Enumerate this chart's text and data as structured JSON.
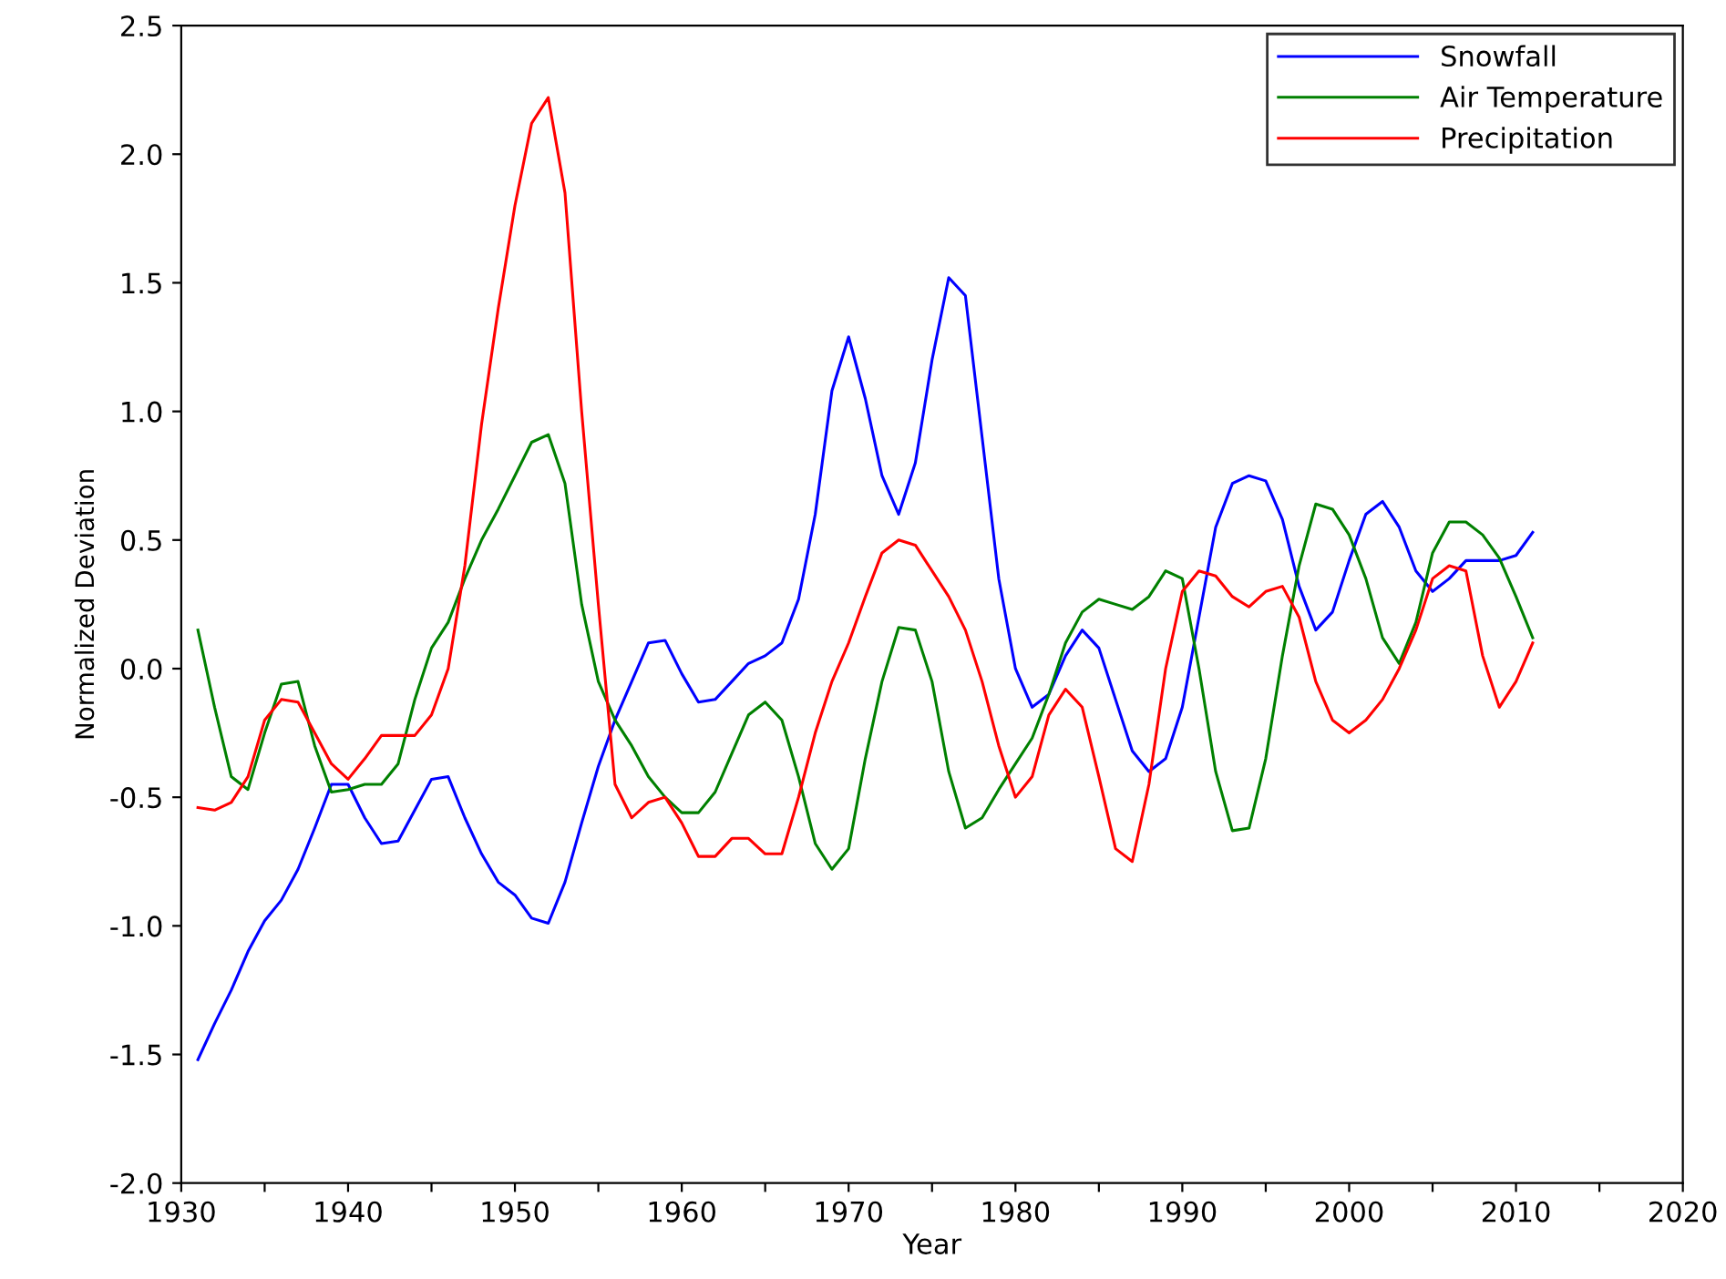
{
  "chart_data": {
    "type": "line",
    "xlabel": "Year",
    "ylabel": "Normalized Deviation",
    "x": [
      1931,
      1932,
      1933,
      1934,
      1935,
      1936,
      1937,
      1938,
      1939,
      1940,
      1941,
      1942,
      1943,
      1944,
      1945,
      1946,
      1947,
      1948,
      1949,
      1950,
      1951,
      1952,
      1953,
      1954,
      1955,
      1956,
      1957,
      1958,
      1959,
      1960,
      1961,
      1962,
      1963,
      1964,
      1965,
      1966,
      1967,
      1968,
      1969,
      1970,
      1971,
      1972,
      1973,
      1974,
      1975,
      1976,
      1977,
      1978,
      1979,
      1980,
      1981,
      1982,
      1983,
      1984,
      1985,
      1986,
      1987,
      1988,
      1989,
      1990,
      1991,
      1992,
      1993,
      1994,
      1995,
      1996,
      1997,
      1998,
      1999,
      2000,
      2001,
      2002,
      2003,
      2004,
      2005,
      2006,
      2007,
      2008,
      2009,
      2010,
      2011
    ],
    "series": [
      {
        "name": "Snowfall",
        "color": "#0000ff",
        "values": [
          -1.52,
          -1.38,
          -1.25,
          -1.1,
          -0.98,
          -0.9,
          -0.78,
          -0.62,
          -0.45,
          -0.45,
          -0.58,
          -0.68,
          -0.67,
          -0.55,
          -0.43,
          -0.42,
          -0.58,
          -0.72,
          -0.83,
          -0.88,
          -0.97,
          -0.99,
          -0.83,
          -0.6,
          -0.38,
          -0.2,
          -0.05,
          0.1,
          0.11,
          -0.02,
          -0.13,
          -0.12,
          -0.05,
          0.02,
          0.05,
          0.1,
          0.27,
          0.6,
          1.08,
          1.29,
          1.05,
          0.75,
          0.6,
          0.8,
          1.2,
          1.52,
          1.45,
          0.9,
          0.35,
          0.0,
          -0.15,
          -0.1,
          0.05,
          0.15,
          0.08,
          -0.12,
          -0.32,
          -0.4,
          -0.35,
          -0.15,
          0.2,
          0.55,
          0.72,
          0.75,
          0.73,
          0.58,
          0.32,
          0.15,
          0.22,
          0.42,
          0.6,
          0.65,
          0.55,
          0.38,
          0.3,
          0.35,
          0.42,
          0.42,
          0.42,
          0.44,
          0.53
        ]
      },
      {
        "name": "Air Temperature",
        "color": "#008000",
        "values": [
          0.15,
          -0.15,
          -0.42,
          -0.47,
          -0.25,
          -0.06,
          -0.05,
          -0.3,
          -0.48,
          -0.47,
          -0.45,
          -0.45,
          -0.37,
          -0.12,
          0.08,
          0.18,
          0.35,
          0.5,
          0.62,
          0.75,
          0.88,
          0.91,
          0.72,
          0.25,
          -0.05,
          -0.2,
          -0.3,
          -0.42,
          -0.5,
          -0.56,
          -0.56,
          -0.48,
          -0.33,
          -0.18,
          -0.13,
          -0.2,
          -0.42,
          -0.68,
          -0.78,
          -0.7,
          -0.35,
          -0.05,
          0.16,
          0.15,
          -0.05,
          -0.4,
          -0.62,
          -0.58,
          -0.47,
          -0.37,
          -0.27,
          -0.1,
          0.1,
          0.22,
          0.27,
          0.25,
          0.23,
          0.28,
          0.38,
          0.35,
          0.0,
          -0.4,
          -0.63,
          -0.62,
          -0.35,
          0.05,
          0.4,
          0.64,
          0.62,
          0.52,
          0.35,
          0.12,
          0.02,
          0.18,
          0.45,
          0.57,
          0.57,
          0.52,
          0.43,
          0.28,
          0.12
        ]
      },
      {
        "name": "Precipitation",
        "color": "#ff0000",
        "values": [
          -0.54,
          -0.55,
          -0.52,
          -0.42,
          -0.2,
          -0.12,
          -0.13,
          -0.25,
          -0.37,
          -0.43,
          -0.35,
          -0.26,
          -0.26,
          -0.26,
          -0.18,
          0.0,
          0.4,
          0.95,
          1.4,
          1.8,
          2.12,
          2.22,
          1.85,
          1.0,
          0.25,
          -0.45,
          -0.58,
          -0.52,
          -0.5,
          -0.6,
          -0.73,
          -0.73,
          -0.66,
          -0.66,
          -0.72,
          -0.72,
          -0.5,
          -0.25,
          -0.05,
          0.1,
          0.28,
          0.45,
          0.5,
          0.48,
          0.38,
          0.28,
          0.15,
          -0.05,
          -0.3,
          -0.5,
          -0.42,
          -0.18,
          -0.08,
          -0.15,
          -0.42,
          -0.7,
          -0.75,
          -0.45,
          0.0,
          0.3,
          0.38,
          0.36,
          0.28,
          0.24,
          0.3,
          0.32,
          0.2,
          -0.05,
          -0.2,
          -0.25,
          -0.2,
          -0.12,
          0.0,
          0.15,
          0.35,
          0.4,
          0.38,
          0.05,
          -0.15,
          -0.05,
          0.1
        ]
      }
    ],
    "xlim": [
      1930,
      2020
    ],
    "xticks": [
      1930,
      {
        "value": 1935,
        "label": null
      },
      1940,
      {
        "value": 1945,
        "label": null
      },
      1950,
      {
        "value": 1955,
        "label": null
      },
      1960,
      {
        "value": 1965,
        "label": null
      },
      1970,
      {
        "value": 1975,
        "label": null
      },
      1980,
      {
        "value": 1985,
        "label": null
      },
      1990,
      {
        "value": 1995,
        "label": null
      },
      2000,
      {
        "value": 2005,
        "label": null
      },
      2010,
      {
        "value": 2015,
        "label": null
      },
      2020
    ],
    "ylim": [
      -2.0,
      2.5
    ],
    "yticks": [
      {
        "value": -2.0,
        "label": "-2.0"
      },
      {
        "value": -1.5,
        "label": "-1.5"
      },
      {
        "value": -1.0,
        "label": "-1.0"
      },
      {
        "value": -0.5,
        "label": "-0.5"
      },
      {
        "value": 0.0,
        "label": "0.0"
      },
      {
        "value": 0.5,
        "label": "0.5"
      },
      {
        "value": 1.0,
        "label": "1.0"
      },
      {
        "value": 1.5,
        "label": "1.5"
      },
      {
        "value": 2.0,
        "label": "2.0"
      },
      {
        "value": 2.5,
        "label": "2.5"
      }
    ],
    "legend": "top right",
    "grid": false,
    "marker": "none",
    "line_style": "solid"
  }
}
